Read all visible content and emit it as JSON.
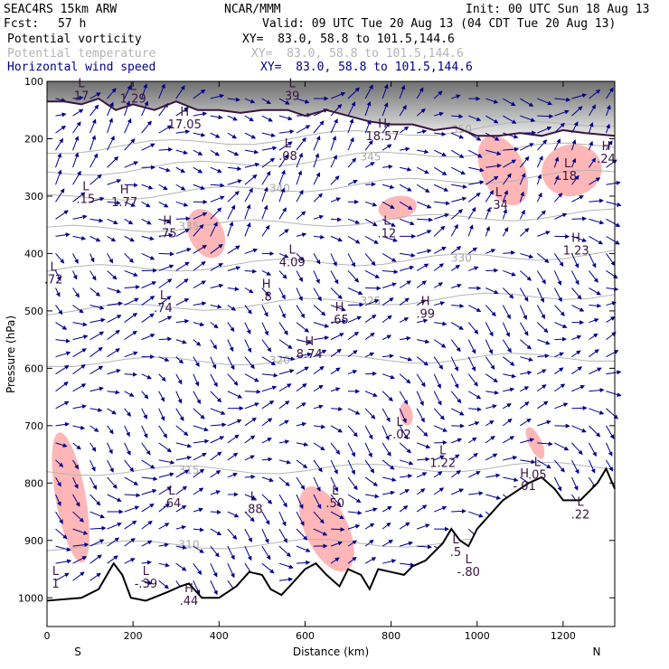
{
  "header": {
    "model": "SEAC4RS 15km ARW",
    "center": "NCAR/MMM",
    "init": "Init: 00 UTC Sun 18 Aug 13",
    "fcst_label": "Fcst:",
    "fcst_value": "57 h",
    "valid": "Valid: 09 UTC Tue 20 Aug 13 (04 CDT Tue 20 Aug 13)",
    "fields": [
      {
        "name": "Potential vorticity",
        "xy": "XY=  83.0, 58.8 to 101.5,144.6"
      },
      {
        "name": "Potential temperature",
        "xy": "XY=  83.0, 58.8 to 101.5,144.6"
      },
      {
        "name": "Horizontal wind speed",
        "xy": "XY=  83.0, 58.8 to 101.5,144.6"
      }
    ]
  },
  "colors": {
    "pv_fill": "#ffb6b6",
    "pv_contour": "#3a1440",
    "theta": "#b4b4b4",
    "wind": "#00008b",
    "terrain": "#000000"
  },
  "chart_data": {
    "type": "vertical cross-section",
    "xlabel": "Distance (km)",
    "ylabel": "Pressure (hPa)",
    "xlim": [
      0,
      1320
    ],
    "ylim": [
      1050,
      100
    ],
    "x_ticks": [
      0,
      200,
      400,
      600,
      800,
      1000,
      1200
    ],
    "y_ticks": [
      100,
      200,
      300,
      400,
      500,
      600,
      700,
      800,
      900,
      1000
    ],
    "x_end_labels": {
      "left": "S",
      "right": "N"
    },
    "terrain": [
      [
        0,
        1005
      ],
      [
        80,
        1000
      ],
      [
        120,
        985
      ],
      [
        155,
        940
      ],
      [
        175,
        960
      ],
      [
        195,
        1000
      ],
      [
        230,
        1005
      ],
      [
        280,
        990
      ],
      [
        310,
        980
      ],
      [
        330,
        975
      ],
      [
        360,
        1000
      ],
      [
        400,
        1000
      ],
      [
        440,
        980
      ],
      [
        470,
        955
      ],
      [
        500,
        960
      ],
      [
        520,
        985
      ],
      [
        545,
        995
      ],
      [
        570,
        975
      ],
      [
        600,
        950
      ],
      [
        625,
        940
      ],
      [
        650,
        960
      ],
      [
        680,
        980
      ],
      [
        700,
        950
      ],
      [
        730,
        960
      ],
      [
        750,
        985
      ],
      [
        770,
        950
      ],
      [
        800,
        955
      ],
      [
        830,
        960
      ],
      [
        850,
        945
      ],
      [
        880,
        935
      ],
      [
        900,
        920
      ],
      [
        920,
        905
      ],
      [
        940,
        880
      ],
      [
        960,
        900
      ],
      [
        980,
        910
      ],
      [
        1000,
        880
      ],
      [
        1030,
        855
      ],
      [
        1060,
        830
      ],
      [
        1090,
        815
      ],
      [
        1120,
        800
      ],
      [
        1150,
        790
      ],
      [
        1180,
        810
      ],
      [
        1200,
        830
      ],
      [
        1240,
        830
      ],
      [
        1280,
        800
      ],
      [
        1300,
        775
      ],
      [
        1320,
        810
      ]
    ],
    "tropopause_contour": [
      [
        0,
        135
      ],
      [
        40,
        135
      ],
      [
        80,
        140
      ],
      [
        120,
        130
      ],
      [
        160,
        150
      ],
      [
        200,
        140
      ],
      [
        250,
        150
      ],
      [
        300,
        135
      ],
      [
        350,
        150
      ],
      [
        400,
        150
      ],
      [
        450,
        155
      ],
      [
        500,
        150
      ],
      [
        560,
        150
      ],
      [
        600,
        160
      ],
      [
        650,
        150
      ],
      [
        700,
        160
      ],
      [
        750,
        170
      ],
      [
        800,
        175
      ],
      [
        850,
        175
      ],
      [
        900,
        185
      ],
      [
        950,
        180
      ],
      [
        1000,
        195
      ],
      [
        1050,
        195
      ],
      [
        1100,
        190
      ],
      [
        1150,
        195
      ],
      [
        1200,
        185
      ],
      [
        1250,
        190
      ],
      [
        1320,
        195
      ]
    ],
    "pv_shaded_regions": [
      {
        "x": [
          20,
          90
        ],
        "p": [
          710,
          940
        ]
      },
      {
        "x": [
          330,
          410
        ],
        "p": [
          320,
          410
        ]
      },
      {
        "x": [
          770,
          860
        ],
        "p": [
          300,
          340
        ]
      },
      {
        "x": [
          1010,
          1110
        ],
        "p": [
          190,
          320
        ]
      },
      {
        "x": [
          1150,
          1290
        ],
        "p": [
          210,
          300
        ]
      },
      {
        "x": [
          600,
          700
        ],
        "p": [
          800,
          960
        ]
      },
      {
        "x": [
          820,
          850
        ],
        "p": [
          660,
          700
        ]
      },
      {
        "x": [
          1120,
          1150
        ],
        "p": [
          700,
          760
        ]
      }
    ],
    "theta_contours": [
      {
        "label": "315",
        "p_left": 780,
        "p_right": 770
      },
      {
        "label": "320",
        "p_left": 590,
        "p_right": 580
      },
      {
        "label": "325",
        "p_left": 500,
        "p_right": 470
      },
      {
        "label": "330",
        "p_left": 430,
        "p_right": 400
      },
      {
        "label": "335",
        "p_left": 360,
        "p_right": 330
      },
      {
        "label": "340",
        "p_left": 305,
        "p_right": 260
      },
      {
        "label": "345",
        "p_left": 260,
        "p_right": 210
      },
      {
        "label": "350",
        "p_left": 220,
        "p_right": 170
      },
      {
        "label": "310",
        "p_left": 910,
        "p_right": 900
      }
    ],
    "extrema": [
      {
        "t": "L",
        "v": "17",
        "x": 80,
        "p": 110
      },
      {
        "t": "L",
        "v": "1.29",
        "x": 200,
        "p": 115
      },
      {
        "t": "H",
        "v": "17.05",
        "x": 320,
        "p": 160
      },
      {
        "t": "L",
        "v": "39",
        "x": 570,
        "p": 110
      },
      {
        "t": "L",
        "v": ".08",
        "x": 560,
        "p": 215
      },
      {
        "t": "H",
        "v": "18.57",
        "x": 780,
        "p": 180
      },
      {
        "t": "L",
        "v": ".15",
        "x": 90,
        "p": 290
      },
      {
        "t": "H",
        "v": "1.77",
        "x": 180,
        "p": 295
      },
      {
        "t": "H",
        "v": ".75",
        "x": 280,
        "p": 350
      },
      {
        "t": "L",
        "v": ".12",
        "x": 790,
        "p": 350
      },
      {
        "t": "L",
        "v": ".34",
        "x": 1050,
        "p": 300
      },
      {
        "t": "L",
        "v": ".18",
        "x": 1210,
        "p": 250
      },
      {
        "t": "H",
        "v": "1.23",
        "x": 1230,
        "p": 380
      },
      {
        "t": "H",
        "v": ".24",
        "x": 1300,
        "p": 220
      },
      {
        "t": "L",
        "v": "4.09",
        "x": 570,
        "p": 400
      },
      {
        "t": "L",
        "v": ".72",
        "x": 15,
        "p": 430
      },
      {
        "t": "L",
        "v": ".74",
        "x": 270,
        "p": 480
      },
      {
        "t": "H",
        "v": ".8",
        "x": 510,
        "p": 460
      },
      {
        "t": "H",
        "v": ".65",
        "x": 680,
        "p": 500
      },
      {
        "t": "H",
        "v": ".99",
        "x": 880,
        "p": 490
      },
      {
        "t": "H",
        "v": "8.74",
        "x": 610,
        "p": 560
      },
      {
        "t": "L",
        "v": "-.02",
        "x": 820,
        "p": 700
      },
      {
        "t": "L",
        "v": "1.22",
        "x": 920,
        "p": 750
      },
      {
        "t": "L",
        "v": ".05",
        "x": 1140,
        "p": 770
      },
      {
        "t": "H",
        "v": "-.01",
        "x": 1110,
        "p": 790
      },
      {
        "t": "L",
        "v": ".64",
        "x": 290,
        "p": 820
      },
      {
        "t": "L",
        "v": ".88",
        "x": 480,
        "p": 830
      },
      {
        "t": "L",
        "v": ".50",
        "x": 670,
        "p": 820
      },
      {
        "t": "L",
        "v": ".22",
        "x": 1240,
        "p": 840
      },
      {
        "t": "L",
        "v": "1",
        "x": 20,
        "p": 960
      },
      {
        "t": "L",
        "v": "-.39",
        "x": 230,
        "p": 960
      },
      {
        "t": "H",
        "v": ".44",
        "x": 330,
        "p": 990
      },
      {
        "t": "L",
        "v": "-.80",
        "x": 980,
        "p": 940
      },
      {
        "t": "L",
        "v": ".5",
        "x": 950,
        "p": 905
      }
    ]
  }
}
